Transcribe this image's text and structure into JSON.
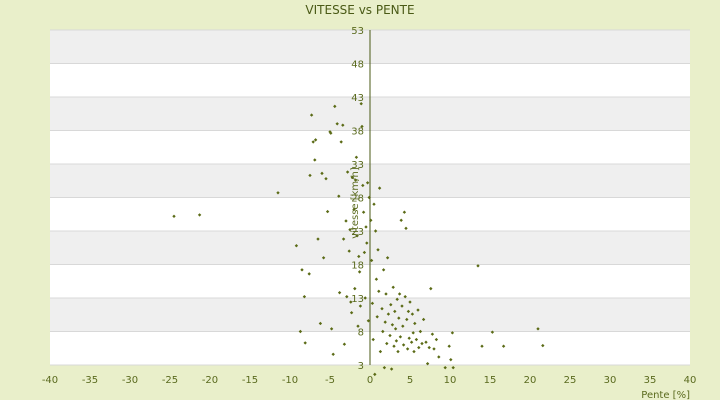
{
  "chart_data": {
    "type": "scatter",
    "title": "VITESSE vs PENTE",
    "xlabel": "Pente [%]",
    "ylabel": "vitesse [km/h]",
    "xlim": [
      -40,
      40
    ],
    "ylim": [
      3,
      53
    ],
    "xticks": [
      -40,
      -35,
      -30,
      -25,
      -20,
      -15,
      -10,
      -5,
      0,
      5,
      10,
      15,
      20,
      25,
      30,
      35,
      40
    ],
    "yticks": [
      3,
      8,
      13,
      18,
      23,
      28,
      33,
      38,
      43,
      48,
      53
    ],
    "grid": "alternating horizontal bands",
    "legend": "none",
    "colors": {
      "background": "#e9efca",
      "plot_band_light": "#ffffff",
      "plot_band_dark": "#efefef",
      "gridline": "#d8d8d8",
      "axis": "#4a5a16",
      "marker": "#5b6b16",
      "text": "#5a6a1e"
    },
    "series": [
      {
        "points": [
          [
            -24.5,
            25.2
          ],
          [
            -21.3,
            25.4
          ],
          [
            -11.5,
            28.7
          ],
          [
            -9.2,
            20.8
          ],
          [
            -8.5,
            17.2
          ],
          [
            -8.2,
            13.2
          ],
          [
            -8.7,
            8.0
          ],
          [
            -8.1,
            6.3
          ],
          [
            -7.6,
            16.6
          ],
          [
            -7.5,
            31.3
          ],
          [
            -7.3,
            40.3
          ],
          [
            -7.1,
            36.3
          ],
          [
            -6.8,
            36.6
          ],
          [
            -6.9,
            33.6
          ],
          [
            -6.5,
            21.8
          ],
          [
            -6.2,
            9.2
          ],
          [
            -6.0,
            31.6
          ],
          [
            -5.8,
            19.0
          ],
          [
            -5.5,
            30.8
          ],
          [
            -5.3,
            25.9
          ],
          [
            -5.0,
            37.8
          ],
          [
            -4.9,
            37.6
          ],
          [
            -4.8,
            8.4
          ],
          [
            -4.6,
            4.6
          ],
          [
            -4.4,
            41.6
          ],
          [
            -4.1,
            39.0
          ],
          [
            -3.9,
            28.2
          ],
          [
            -3.8,
            13.8
          ],
          [
            -3.6,
            36.3
          ],
          [
            -3.4,
            38.8
          ],
          [
            -3.3,
            21.8
          ],
          [
            -3.2,
            6.1
          ],
          [
            -3.0,
            24.5
          ],
          [
            -2.9,
            13.2
          ],
          [
            -2.8,
            31.8
          ],
          [
            -2.6,
            20.0
          ],
          [
            -2.5,
            23.2
          ],
          [
            -2.4,
            12.4
          ],
          [
            -2.3,
            10.8
          ],
          [
            -2.2,
            31.0
          ],
          [
            -2.0,
            26.2
          ],
          [
            -1.9,
            14.4
          ],
          [
            -1.8,
            30.6
          ],
          [
            -1.7,
            34.0
          ],
          [
            -1.6,
            22.3
          ],
          [
            -1.5,
            8.8
          ],
          [
            -1.4,
            19.2
          ],
          [
            -1.3,
            16.9
          ],
          [
            -1.2,
            11.8
          ],
          [
            -1.1,
            42.0
          ],
          [
            -1.0,
            38.6
          ],
          [
            -0.9,
            29.8
          ],
          [
            -0.8,
            25.8
          ],
          [
            -0.7,
            19.8
          ],
          [
            -0.6,
            13.0
          ],
          [
            -0.5,
            23.6
          ],
          [
            -0.4,
            21.2
          ],
          [
            -0.3,
            30.2
          ],
          [
            -0.2,
            9.6
          ],
          [
            -0.1,
            28.0
          ],
          [
            0.1,
            24.6
          ],
          [
            0.2,
            18.6
          ],
          [
            0.3,
            12.2
          ],
          [
            0.4,
            6.8
          ],
          [
            0.5,
            27.0
          ],
          [
            0.6,
            1.6
          ],
          [
            0.7,
            23.0
          ],
          [
            0.8,
            15.8
          ],
          [
            0.9,
            10.2
          ],
          [
            1.0,
            20.2
          ],
          [
            1.1,
            14.0
          ],
          [
            1.2,
            29.4
          ],
          [
            1.3,
            5.0
          ],
          [
            1.5,
            11.4
          ],
          [
            1.6,
            8.0
          ],
          [
            1.7,
            17.2
          ],
          [
            1.8,
            2.6
          ],
          [
            1.9,
            9.4
          ],
          [
            2.0,
            13.6
          ],
          [
            2.1,
            6.2
          ],
          [
            2.2,
            19.0
          ],
          [
            2.3,
            10.6
          ],
          [
            2.5,
            7.4
          ],
          [
            2.6,
            12.0
          ],
          [
            2.7,
            2.4
          ],
          [
            2.8,
            9.0
          ],
          [
            2.9,
            14.6
          ],
          [
            3.0,
            5.8
          ],
          [
            3.1,
            11.0
          ],
          [
            3.2,
            8.4
          ],
          [
            3.3,
            6.6
          ],
          [
            3.4,
            12.8
          ],
          [
            3.5,
            5.0
          ],
          [
            3.6,
            10.0
          ],
          [
            3.7,
            13.6
          ],
          [
            3.8,
            7.2
          ],
          [
            3.9,
            24.6
          ],
          [
            4.0,
            11.8
          ],
          [
            4.1,
            8.8
          ],
          [
            4.2,
            6.0
          ],
          [
            4.3,
            25.8
          ],
          [
            4.4,
            13.2
          ],
          [
            4.5,
            23.4
          ],
          [
            4.6,
            9.8
          ],
          [
            4.7,
            5.4
          ],
          [
            4.8,
            11.0
          ],
          [
            4.9,
            7.0
          ],
          [
            5.0,
            12.4
          ],
          [
            5.2,
            6.4
          ],
          [
            5.3,
            10.6
          ],
          [
            5.4,
            7.8
          ],
          [
            5.5,
            5.0
          ],
          [
            5.6,
            9.2
          ],
          [
            5.8,
            6.8
          ],
          [
            6.0,
            11.2
          ],
          [
            6.1,
            5.6
          ],
          [
            6.3,
            8.0
          ],
          [
            6.5,
            6.2
          ],
          [
            6.7,
            9.8
          ],
          [
            7.0,
            6.4
          ],
          [
            7.2,
            3.2
          ],
          [
            7.4,
            5.6
          ],
          [
            7.6,
            14.4
          ],
          [
            7.8,
            7.6
          ],
          [
            8.0,
            5.4
          ],
          [
            8.3,
            6.8
          ],
          [
            8.6,
            4.2
          ],
          [
            9.4,
            2.6
          ],
          [
            9.9,
            5.8
          ],
          [
            10.3,
            7.8
          ],
          [
            10.1,
            3.8
          ],
          [
            10.4,
            2.6
          ],
          [
            13.5,
            17.8
          ],
          [
            14.0,
            5.8
          ],
          [
            15.3,
            7.9
          ],
          [
            16.7,
            5.8
          ],
          [
            21.0,
            8.4
          ],
          [
            21.6,
            5.9
          ]
        ]
      }
    ]
  }
}
